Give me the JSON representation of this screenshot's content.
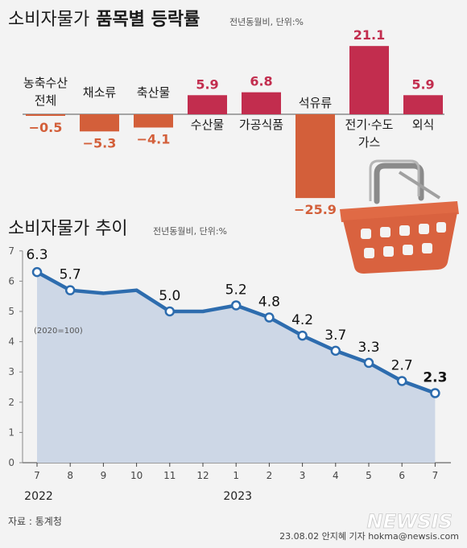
{
  "bar_title_a": "소비자물가",
  "bar_title_b": "품목별 등락률",
  "bar_subtitle": "전년동월비, 단위:%",
  "line_title": "소비자물가 추이",
  "line_subtitle": "전년동월비, 단위:%",
  "base_note": "(2020=100)",
  "source": "자료 : 통계청",
  "credit": "23.08.02 안지혜 기자 hokma@newsis.com",
  "logo": "NEWSIS",
  "colors": {
    "positive": "#c22d4e",
    "negative": "#d35f3a",
    "line": "#2d6cae",
    "area": "#cdd7e6",
    "basket": "#d9623f"
  },
  "icons": {
    "basket": "shopping-basket-icon"
  },
  "chart_data": [
    {
      "type": "bar",
      "title": "소비자물가 품목별 등락률",
      "subtitle": "전년동월비, 단위:%",
      "categories": [
        "농축수산 전체",
        "채소류",
        "축산물",
        "수산물",
        "가공식품",
        "석유류",
        "전기·수도 가스",
        "외식"
      ],
      "category_lines": [
        [
          "농축수산",
          "전체"
        ],
        [
          "채소류"
        ],
        [
          "축산물"
        ],
        [
          "수산물"
        ],
        [
          "가공식품"
        ],
        [
          "석유류"
        ],
        [
          "전기·수도",
          "가스"
        ],
        [
          "외식"
        ]
      ],
      "values": [
        -0.5,
        -5.3,
        -4.1,
        5.9,
        6.8,
        -25.9,
        21.1,
        5.9
      ],
      "value_labels": [
        "−0.5",
        "−5.3",
        "−4.1",
        "5.9",
        "6.8",
        "−25.9",
        "21.1",
        "5.9"
      ]
    },
    {
      "type": "line",
      "title": "소비자물가 추이",
      "subtitle": "전년동월비, 단위:%",
      "x_labels": [
        "7",
        "8",
        "9",
        "10",
        "11",
        "12",
        "1",
        "2",
        "3",
        "4",
        "5",
        "6",
        "7"
      ],
      "year_labels": [
        {
          "index": 0,
          "label": "2022"
        },
        {
          "index": 6,
          "label": "2023"
        }
      ],
      "values": [
        6.3,
        5.7,
        5.6,
        5.7,
        5.0,
        5.0,
        5.2,
        4.8,
        4.2,
        3.7,
        3.3,
        2.7,
        2.3
      ],
      "labeled": [
        {
          "index": 0,
          "label": "6.3"
        },
        {
          "index": 1,
          "label": "5.7"
        },
        {
          "index": 4,
          "label": "5.0"
        },
        {
          "index": 6,
          "label": "5.2"
        },
        {
          "index": 7,
          "label": "4.8"
        },
        {
          "index": 8,
          "label": "4.2"
        },
        {
          "index": 9,
          "label": "3.7"
        },
        {
          "index": 10,
          "label": "3.3"
        },
        {
          "index": 11,
          "label": "2.7"
        },
        {
          "index": 12,
          "label": "2.3"
        }
      ],
      "marked_indices": [
        0,
        1,
        4,
        6,
        7,
        8,
        9,
        10,
        11,
        12
      ],
      "yticks": [
        "0",
        "1",
        "2",
        "3",
        "4",
        "5",
        "6",
        "7"
      ],
      "ylim": [
        0,
        7
      ]
    }
  ]
}
